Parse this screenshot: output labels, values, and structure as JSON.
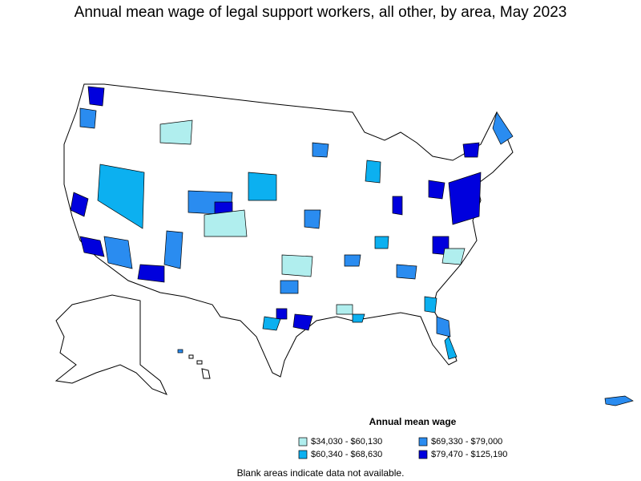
{
  "title": "Annual mean wage of legal support workers, all other, by area, May 2023",
  "legend": {
    "title": "Annual mean wage",
    "items": [
      {
        "label": "$34,030 - $60,130",
        "color": "#b0eeee"
      },
      {
        "label": "$60,340 - $68,630",
        "color": "#0cb0f0"
      },
      {
        "label": "$69,330 - $79,000",
        "color": "#2a8cf0"
      },
      {
        "label": "$79,470 - $125,190",
        "color": "#0000dd"
      }
    ]
  },
  "note": "Blank areas indicate data not available."
}
